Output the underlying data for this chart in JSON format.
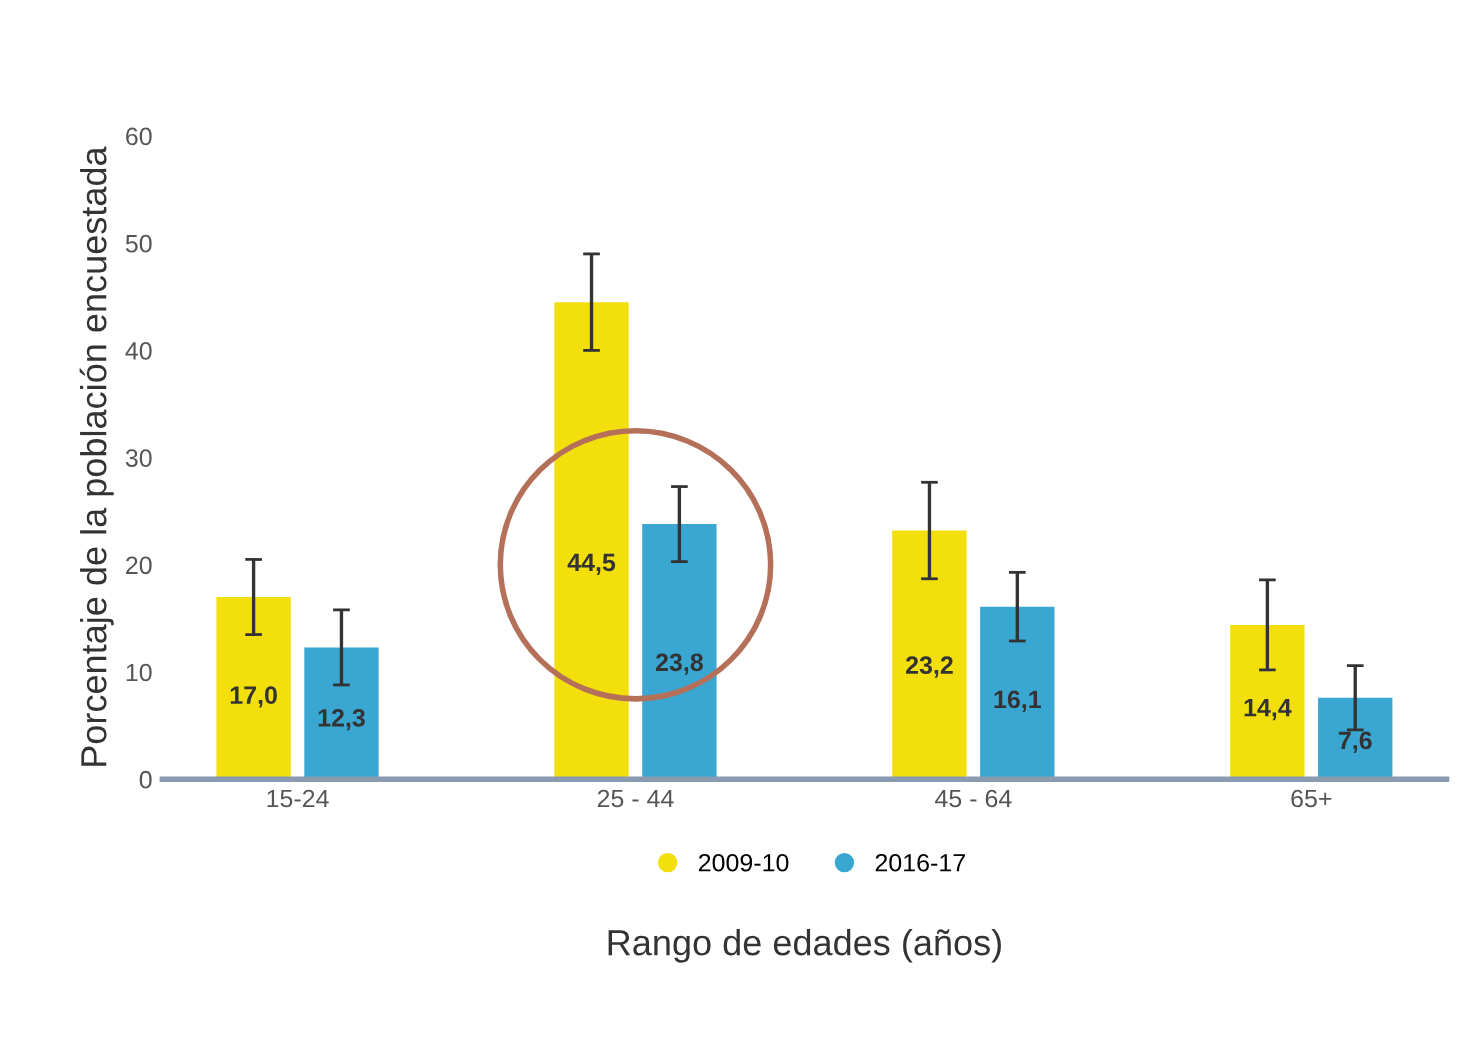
{
  "chart_data": {
    "type": "bar",
    "xlabel": "Rango de edades (años)",
    "ylabel": "Porcentaje de la población encuestada",
    "categories": [
      "15-24",
      "25 - 44",
      "45 - 64",
      "65+"
    ],
    "series": [
      {
        "name": "2009-10",
        "color": "#f2df0c",
        "values": [
          17.0,
          44.5,
          23.2,
          14.4
        ],
        "errors": [
          3.5,
          4.5,
          4.5,
          4.2
        ],
        "value_labels": [
          "17,0",
          "44,5",
          "23,2",
          "14,4"
        ]
      },
      {
        "name": "2016-17",
        "color": "#3aa6d2",
        "values": [
          12.3,
          23.8,
          16.1,
          7.6
        ],
        "errors": [
          3.5,
          3.5,
          3.2,
          3.0
        ],
        "value_labels": [
          "12,3",
          "23,8",
          "16,1",
          "7,6"
        ]
      }
    ],
    "ylim": [
      0,
      60
    ],
    "yticks": [
      0,
      10,
      20,
      30,
      40,
      50,
      60
    ],
    "grid": false,
    "legend": "bottom",
    "marker": "circle"
  }
}
